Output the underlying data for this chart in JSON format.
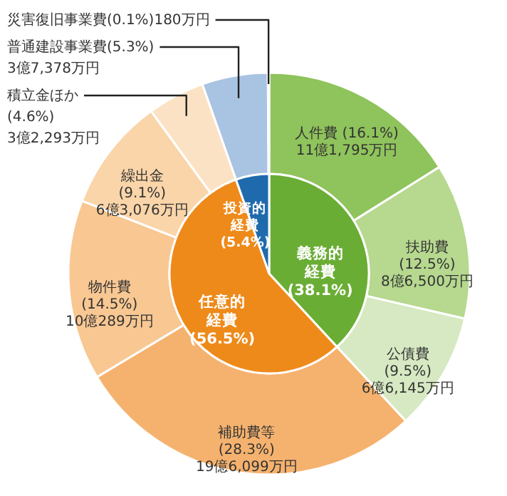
{
  "chart_data": [
    {
      "type": "donut",
      "categories": [
        "人件費",
        "扶助費",
        "公債費",
        "補助費等",
        "物件費",
        "繰出金",
        "積立金ほか",
        "普通建設事業費",
        "災害復旧事業費"
      ],
      "values": [
        16.1,
        12.5,
        9.5,
        28.3,
        14.5,
        9.1,
        4.6,
        5.3,
        0.1
      ],
      "colors": [
        "#8fc35c",
        "#b6d88f",
        "#d6e9c2",
        "#f5b26e",
        "#f8c792",
        "#fad5a9",
        "#fce2c4",
        "#a9c4e2",
        "#c9dcf1"
      ],
      "value_labels": [
        " (16.1%)\n11億1,795万円",
        "\n(12.5%)\n8億6,500万円",
        "\n(9.5%)\n6億6,145万円",
        "\n(28.3%)\n19億6,099万円",
        "\n(14.5%)\n10億289万円",
        "\n(9.1%)\n6億3,076万円",
        "\n(4.6%)\n3億2,293万円",
        "(5.3%)\n3億7,378万円",
        "(0.1%)180万円"
      ]
    },
    {
      "type": "pie",
      "categories": [
        "義務的経費",
        "任意的経費",
        "投資的経費"
      ],
      "values": [
        38.1,
        56.5,
        5.4
      ],
      "colors": [
        "#6aad34",
        "#ee8a1a",
        "#1f6aad"
      ],
      "value_labels": [
        "(38.1%)",
        "(56.5%)",
        "(5.4%)"
      ]
    }
  ]
}
